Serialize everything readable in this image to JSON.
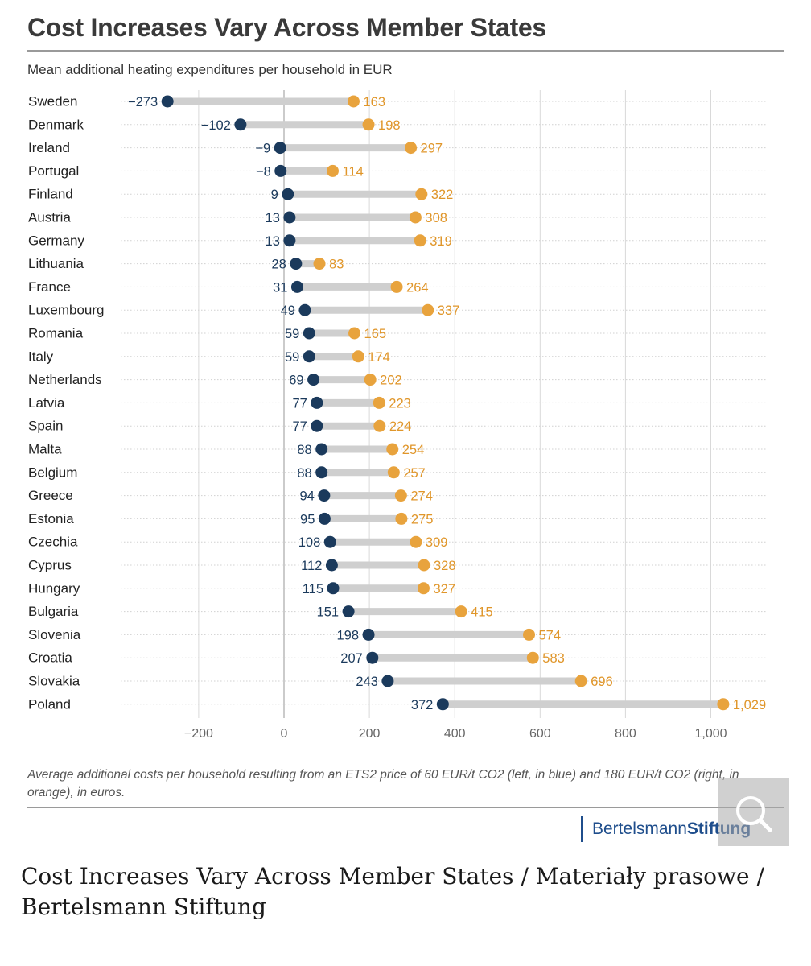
{
  "chart_data": {
    "type": "dumbbell",
    "title": "Cost Increases Vary Across Member States",
    "subtitle": "Mean additional heating expenditures per household in EUR",
    "xlabel": "",
    "ylabel": "",
    "xlim": [
      -320,
      1070
    ],
    "x_ticks": [
      -200,
      0,
      200,
      400,
      600,
      800,
      1000
    ],
    "x_tick_labels": [
      "−200",
      "0",
      "200",
      "400",
      "600",
      "800",
      "1,000"
    ],
    "grid": true,
    "categories": [
      "Sweden",
      "Denmark",
      "Ireland",
      "Portugal",
      "Finland",
      "Austria",
      "Germany",
      "Lithuania",
      "France",
      "Luxembourg",
      "Romania",
      "Italy",
      "Netherlands",
      "Latvia",
      "Spain",
      "Malta",
      "Belgium",
      "Greece",
      "Estonia",
      "Czechia",
      "Cyprus",
      "Hungary",
      "Bulgaria",
      "Slovenia",
      "Croatia",
      "Slovakia",
      "Poland"
    ],
    "series": [
      {
        "name": "ETS2 price 60 EUR/t CO2",
        "color": "#1b3a5c",
        "values": [
          -273,
          -102,
          -9,
          -8,
          9,
          13,
          13,
          28,
          31,
          49,
          59,
          59,
          69,
          77,
          77,
          88,
          88,
          94,
          95,
          108,
          112,
          115,
          151,
          198,
          207,
          243,
          372
        ],
        "labels": [
          "−273",
          "−102",
          "−9",
          "−8",
          "9",
          "13",
          "13",
          "28",
          "31",
          "49",
          "59",
          "59",
          "69",
          "77",
          "77",
          "88",
          "88",
          "94",
          "95",
          "108",
          "112",
          "115",
          "151",
          "198",
          "207",
          "243",
          "372"
        ]
      },
      {
        "name": "ETS2 price 180 EUR/t CO2",
        "color": "#e8a33d",
        "values": [
          163,
          198,
          297,
          114,
          322,
          308,
          319,
          83,
          264,
          337,
          165,
          174,
          202,
          223,
          224,
          254,
          257,
          274,
          275,
          309,
          328,
          327,
          415,
          574,
          583,
          696,
          1029
        ],
        "labels": [
          "163",
          "198",
          "297",
          "114",
          "322",
          "308",
          "319",
          "83",
          "264",
          "337",
          "165",
          "174",
          "202",
          "223",
          "224",
          "254",
          "257",
          "274",
          "275",
          "309",
          "328",
          "327",
          "415",
          "574",
          "583",
          "696",
          "1,029"
        ]
      }
    ],
    "note": "Average additional costs per household resulting from an ETS2 price of 60 EUR/t CO2 (left, in blue) and 180 EUR/t CO2 (right, in orange), in euros."
  },
  "logo": {
    "part1": "Bertelsmann",
    "part2": "Stiftung"
  },
  "caption": "Cost Increases Vary Across Member States / Materiały prasowe / Bertelsmann Stiftung",
  "colors": {
    "bar": "#cfcfcf",
    "grid": "#d9d9d9",
    "label_blue": "#1b3a5c",
    "label_orange": "#e0962a"
  }
}
